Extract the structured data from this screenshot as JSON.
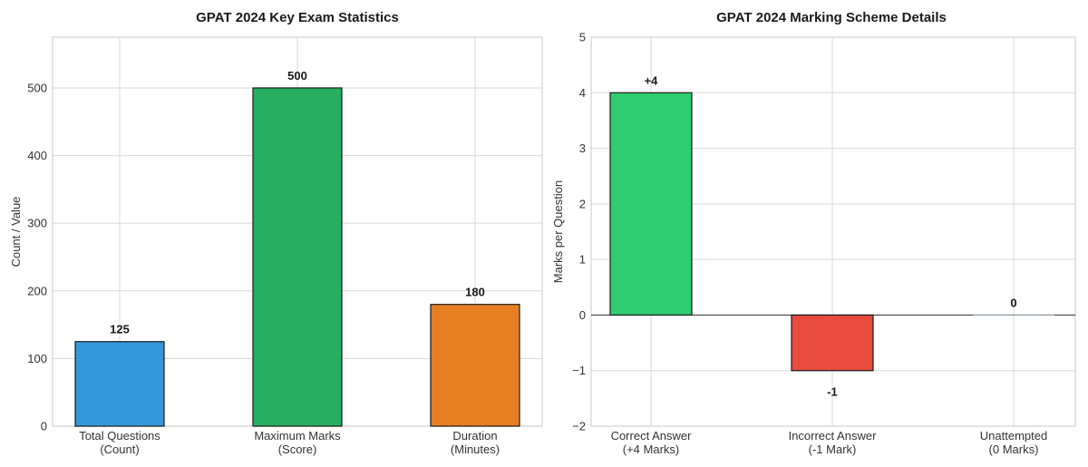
{
  "chart_data": [
    {
      "type": "bar",
      "title": "GPAT 2024 Key Exam Statistics",
      "xlabel": "",
      "ylabel": "Count / Value",
      "categories": [
        [
          "Total Questions",
          "(Count)"
        ],
        [
          "Maximum Marks",
          "(Score)"
        ],
        [
          "Duration",
          "(Minutes)"
        ]
      ],
      "values": [
        125,
        500,
        180
      ],
      "data_labels": [
        "125",
        "500",
        "180"
      ],
      "colors": [
        "#3498db",
        "#27ae60",
        "#e67e22"
      ],
      "ylim": [
        0,
        575
      ],
      "yticks": [
        0,
        100,
        200,
        300,
        400,
        500
      ],
      "grid": true
    },
    {
      "type": "bar",
      "title": "GPAT 2024 Marking Scheme Details",
      "xlabel": "",
      "ylabel": "Marks per Question",
      "categories": [
        [
          "Correct Answer",
          "(+4 Marks)"
        ],
        [
          "Incorrect Answer",
          "(-1 Mark)"
        ],
        [
          "Unattempted",
          "(0 Marks)"
        ]
      ],
      "values": [
        4,
        -1,
        0
      ],
      "data_labels": [
        "+4",
        "-1",
        "0"
      ],
      "colors": [
        "#2ecc71",
        "#e74c3c",
        "#95a5a6"
      ],
      "ylim": [
        -2,
        5
      ],
      "yticks": [
        -2,
        -1,
        0,
        1,
        2,
        3,
        4,
        5
      ],
      "grid": true
    }
  ]
}
